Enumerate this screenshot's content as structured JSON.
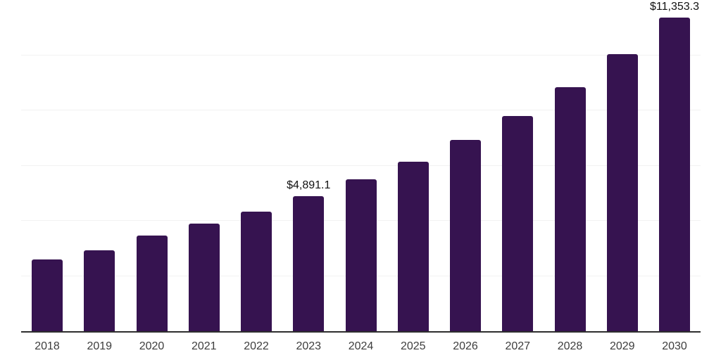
{
  "figure": {
    "background_color": "#ffffff"
  },
  "chart_data": {
    "type": "bar",
    "title": "",
    "xlabel": "",
    "ylabel": "",
    "categories": [
      "2018",
      "2019",
      "2020",
      "2021",
      "2022",
      "2023",
      "2024",
      "2025",
      "2026",
      "2027",
      "2028",
      "2029",
      "2030"
    ],
    "values": [
      2600,
      2930,
      3460,
      3900,
      4330,
      4891.1,
      5500,
      6140,
      6930,
      7800,
      8840,
      10040,
      11353.3
    ],
    "point_labels": [
      "",
      "",
      "",
      "",
      "",
      "$4,891.1",
      "",
      "",
      "",
      "",
      "",
      "",
      "$11,353.3"
    ],
    "ylim": [
      0,
      12000
    ],
    "gridline_interval": 2000,
    "grid": true,
    "legend_position": "none",
    "bar_color": "#361350",
    "gridline_color": "#f2f2f2",
    "axis_line_color": "#2e2e2e",
    "value_label_color": "#111111",
    "tick_label_color": "#3d3d3d"
  }
}
